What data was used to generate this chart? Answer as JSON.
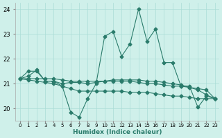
{
  "xlabel": "Humidex (Indice chaleur)",
  "x": [
    0,
    1,
    2,
    3,
    4,
    5,
    6,
    7,
    8,
    9,
    10,
    11,
    12,
    13,
    14,
    15,
    16,
    17,
    18,
    19,
    20,
    21,
    22,
    23
  ],
  "line1": [
    21.2,
    21.5,
    21.5,
    21.1,
    21.1,
    20.9,
    19.85,
    19.65,
    20.4,
    21.0,
    22.9,
    23.1,
    22.1,
    22.6,
    24.0,
    22.7,
    23.2,
    21.85,
    21.85,
    20.9,
    20.9,
    20.05,
    20.5,
    20.4
  ],
  "line2": [
    21.2,
    21.3,
    21.55,
    21.1,
    21.1,
    21.0,
    21.05,
    21.05,
    21.0,
    21.05,
    21.1,
    21.15,
    21.15,
    21.15,
    21.15,
    21.1,
    21.1,
    21.05,
    21.0,
    20.95,
    20.85,
    20.75,
    20.55,
    20.4
  ],
  "line3": [
    21.2,
    21.15,
    21.1,
    21.05,
    21.0,
    20.9,
    20.8,
    20.7,
    20.7,
    20.7,
    20.7,
    20.7,
    20.7,
    20.65,
    20.65,
    20.65,
    20.6,
    20.55,
    20.5,
    20.5,
    20.45,
    20.4,
    20.4,
    20.4
  ],
  "line4": [
    21.2,
    21.2,
    21.2,
    21.2,
    21.2,
    21.15,
    21.1,
    21.1,
    21.1,
    21.1,
    21.1,
    21.1,
    21.1,
    21.1,
    21.05,
    21.0,
    21.0,
    20.95,
    20.9,
    20.9,
    20.85,
    20.8,
    20.75,
    20.4
  ],
  "ylim": [
    19.5,
    24.25
  ],
  "yticks": [
    20,
    21,
    22,
    23,
    24
  ],
  "xlim": [
    -0.5,
    23.5
  ],
  "color": "#2a7b6b",
  "bg_color": "#cff0ea",
  "grid_color": "#aaddd6",
  "linewidth": 0.8,
  "markersize": 2.5,
  "marker": "D"
}
